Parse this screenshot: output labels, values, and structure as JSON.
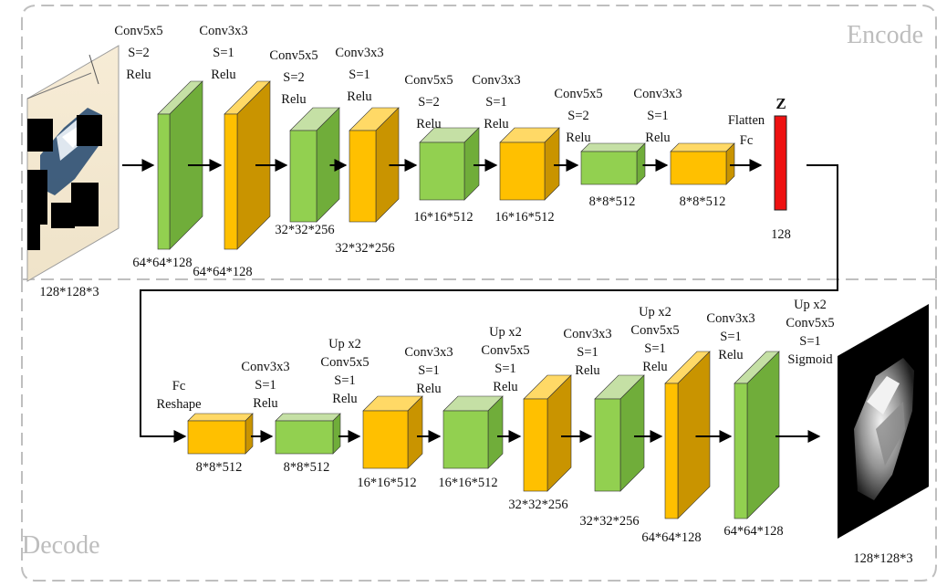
{
  "sections": {
    "encode": "Encode",
    "decode": "Decode"
  },
  "colors": {
    "green_front": "#92d050",
    "green_top": "#c5e0a5",
    "green_side": "#70ad3a",
    "orange_front": "#ffc000",
    "orange_top": "#ffd966",
    "orange_side": "#c99400",
    "latent": "#ee1111",
    "arrow": "#000000",
    "section_border": "#bfbfbf"
  },
  "encoder": {
    "input_image": {
      "label": "128*128*3",
      "icon": "input-sketch-image"
    },
    "layers": [
      {
        "op": [
          "Conv5x5",
          "S=2",
          "Relu"
        ],
        "size": "64*64*128",
        "color": "green"
      },
      {
        "op": [
          "Conv3x3",
          "S=1",
          "Relu"
        ],
        "size": "64*64*128",
        "color": "orange"
      },
      {
        "op": [
          "Conv5x5",
          "S=2",
          "Relu"
        ],
        "size": "32*32*256",
        "color": "green"
      },
      {
        "op": [
          "Conv3x3",
          "S=1",
          "Relu"
        ],
        "size": "32*32*256",
        "color": "orange"
      },
      {
        "op": [
          "Conv5x5",
          "S=2",
          "Relu"
        ],
        "size": "16*16*512",
        "color": "green"
      },
      {
        "op": [
          "Conv3x3",
          "S=1",
          "Relu"
        ],
        "size": "16*16*512",
        "color": "orange"
      },
      {
        "op": [
          "Conv5x5",
          "S=2",
          "Relu"
        ],
        "size": "8*8*512",
        "color": "green"
      },
      {
        "op": [
          "Conv3x3",
          "S=1",
          "Relu"
        ],
        "size": "8*8*512",
        "color": "orange"
      }
    ],
    "flatten": [
      "Flatten",
      "Fc"
    ],
    "latent": {
      "name": "Z",
      "size": "128"
    }
  },
  "decoder": {
    "layers": [
      {
        "op": [
          "Fc",
          "Reshape"
        ],
        "size": "8*8*512",
        "color": "orange"
      },
      {
        "op": [
          "Conv3x3",
          "S=1",
          "Relu"
        ],
        "size": "8*8*512",
        "color": "green"
      },
      {
        "op": [
          "Up x2",
          "Conv5x5",
          "S=1",
          "Relu"
        ],
        "size": "16*16*512",
        "color": "orange"
      },
      {
        "op": [
          "Conv3x3",
          "S=1",
          "Relu"
        ],
        "size": "16*16*512",
        "color": "green"
      },
      {
        "op": [
          "Up x2",
          "Conv5x5",
          "S=1",
          "Relu"
        ],
        "size": "32*32*256",
        "color": "orange"
      },
      {
        "op": [
          "Conv3x3",
          "S=1",
          "Relu"
        ],
        "size": "32*32*256",
        "color": "green"
      },
      {
        "op": [
          "Up x2",
          "Conv5x5",
          "S=1",
          "Relu"
        ],
        "size": "64*64*128",
        "color": "orange"
      },
      {
        "op": [
          "Conv3x3",
          "S=1",
          "Relu"
        ],
        "size": "64*64*128",
        "color": "green"
      }
    ],
    "output_op": [
      "Up x2",
      "Conv5x5",
      "S=1",
      "Sigmoid"
    ],
    "output_image": {
      "label": "128*128*3",
      "icon": "output-reconstruction-image"
    }
  }
}
